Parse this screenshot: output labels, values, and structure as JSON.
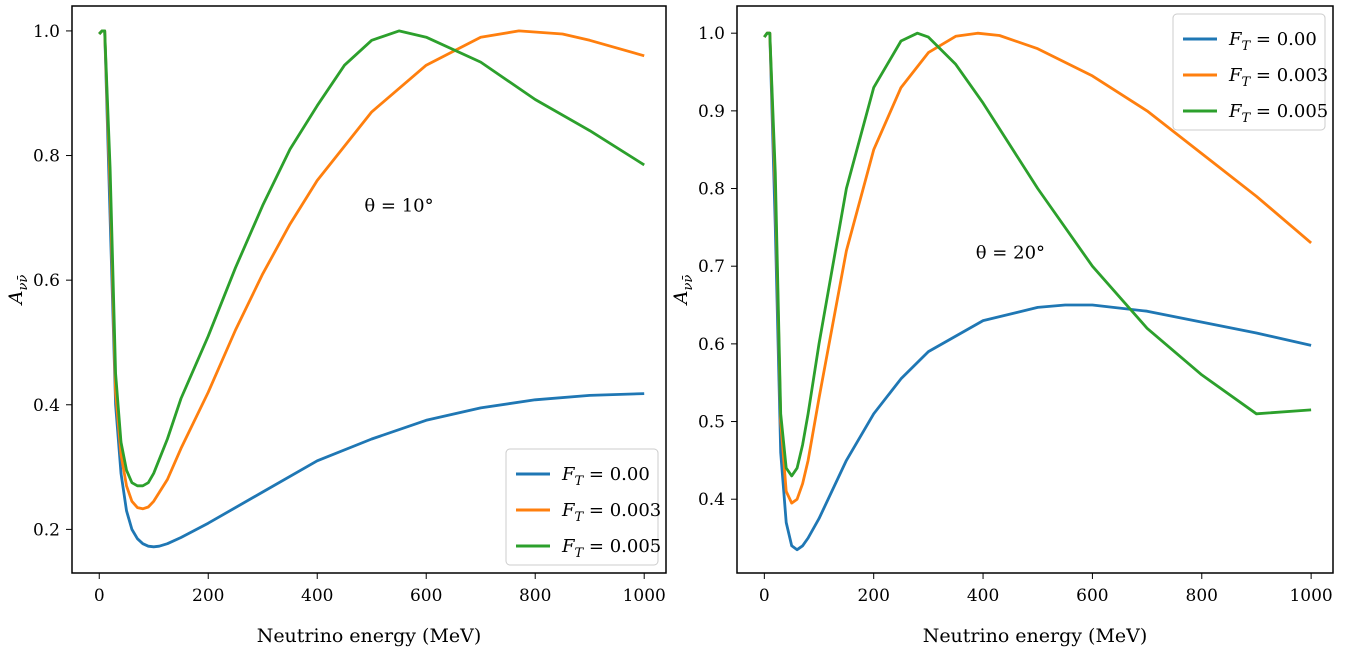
{
  "chart_data": [
    {
      "type": "line",
      "panel": "left",
      "xlabel": "Neutrino energy (MeV)",
      "ylabel": "A_{νν̄}",
      "xlim": [
        -50,
        1040
      ],
      "ylim": [
        0.13,
        1.04
      ],
      "xticks": [
        0,
        200,
        400,
        600,
        800,
        1000
      ],
      "yticks": [
        0.2,
        0.4,
        0.6,
        0.8,
        1.0
      ],
      "ytick_labels": [
        "0.2",
        "0.4",
        "0.6",
        "0.8",
        "1.0"
      ],
      "annotation": {
        "text": "θ = 10°",
        "x": 550,
        "y": 0.71
      },
      "legend": {
        "placement": "lower right"
      },
      "series": [
        {
          "name": "F_T = 0.00",
          "color": "#1f77b4",
          "x": [
            0,
            5,
            10,
            20,
            30,
            40,
            50,
            60,
            70,
            80,
            90,
            100,
            110,
            125,
            150,
            200,
            300,
            400,
            500,
            600,
            700,
            800,
            900,
            1000
          ],
          "y": [
            0.995,
            1.0,
            1.0,
            0.7,
            0.4,
            0.29,
            0.23,
            0.2,
            0.185,
            0.177,
            0.173,
            0.172,
            0.173,
            0.177,
            0.187,
            0.21,
            0.26,
            0.31,
            0.345,
            0.375,
            0.395,
            0.408,
            0.415,
            0.418
          ]
        },
        {
          "name": "F_T = 0.003",
          "color": "#ff7f0e",
          "x": [
            0,
            5,
            10,
            20,
            30,
            40,
            50,
            60,
            70,
            80,
            90,
            100,
            125,
            150,
            200,
            250,
            300,
            350,
            400,
            500,
            600,
            700,
            770,
            850,
            900,
            1000
          ],
          "y": [
            0.995,
            1.0,
            1.0,
            0.75,
            0.42,
            0.32,
            0.27,
            0.245,
            0.235,
            0.233,
            0.236,
            0.245,
            0.28,
            0.33,
            0.42,
            0.52,
            0.61,
            0.69,
            0.76,
            0.87,
            0.945,
            0.99,
            1.0,
            0.995,
            0.985,
            0.96
          ]
        },
        {
          "name": "F_T = 0.005",
          "color": "#2ca02c",
          "x": [
            0,
            5,
            10,
            20,
            30,
            40,
            50,
            60,
            70,
            80,
            90,
            100,
            125,
            150,
            200,
            250,
            300,
            350,
            400,
            450,
            500,
            550,
            600,
            700,
            800,
            900,
            1000
          ],
          "y": [
            0.995,
            1.0,
            1.0,
            0.78,
            0.45,
            0.34,
            0.295,
            0.275,
            0.27,
            0.27,
            0.275,
            0.29,
            0.345,
            0.41,
            0.51,
            0.62,
            0.72,
            0.81,
            0.88,
            0.945,
            0.985,
            1.0,
            0.99,
            0.95,
            0.89,
            0.84,
            0.785
          ]
        }
      ]
    },
    {
      "type": "line",
      "panel": "right",
      "xlabel": "Neutrino energy (MeV)",
      "ylabel": "A_{νν̄}",
      "xlim": [
        -50,
        1040
      ],
      "ylim": [
        0.305,
        1.035
      ],
      "xticks": [
        0,
        200,
        400,
        600,
        800,
        1000
      ],
      "yticks": [
        0.4,
        0.5,
        0.6,
        0.7,
        0.8,
        0.9,
        1.0
      ],
      "ytick_labels": [
        "0.4",
        "0.5",
        "0.6",
        "0.7",
        "0.8",
        "0.9",
        "1.0"
      ],
      "annotation": {
        "text": "θ = 20°",
        "x": 450,
        "y": 0.71
      },
      "legend": {
        "placement": "upper right"
      },
      "series": [
        {
          "name": "F_T = 0.00",
          "color": "#1f77b4",
          "x": [
            0,
            5,
            10,
            20,
            30,
            40,
            50,
            60,
            70,
            80,
            100,
            150,
            200,
            250,
            300,
            400,
            500,
            550,
            600,
            700,
            800,
            900,
            1000
          ],
          "y": [
            0.995,
            1.0,
            1.0,
            0.75,
            0.46,
            0.37,
            0.34,
            0.335,
            0.34,
            0.35,
            0.375,
            0.45,
            0.51,
            0.555,
            0.59,
            0.63,
            0.647,
            0.65,
            0.65,
            0.642,
            0.628,
            0.614,
            0.598
          ]
        },
        {
          "name": "F_T = 0.003",
          "color": "#ff7f0e",
          "x": [
            0,
            5,
            10,
            20,
            30,
            40,
            50,
            60,
            70,
            80,
            100,
            150,
            200,
            250,
            300,
            350,
            390,
            430,
            500,
            600,
            700,
            800,
            900,
            1000
          ],
          "y": [
            0.995,
            1.0,
            1.0,
            0.8,
            0.5,
            0.41,
            0.395,
            0.4,
            0.42,
            0.45,
            0.53,
            0.72,
            0.85,
            0.93,
            0.975,
            0.996,
            1.0,
            0.997,
            0.98,
            0.945,
            0.9,
            0.845,
            0.79,
            0.73
          ]
        },
        {
          "name": "F_T = 0.005",
          "color": "#2ca02c",
          "x": [
            0,
            5,
            10,
            20,
            30,
            40,
            50,
            60,
            70,
            80,
            100,
            150,
            200,
            250,
            280,
            300,
            350,
            400,
            500,
            600,
            700,
            800,
            900,
            1000
          ],
          "y": [
            0.995,
            1.0,
            1.0,
            0.82,
            0.51,
            0.44,
            0.43,
            0.44,
            0.47,
            0.51,
            0.6,
            0.8,
            0.93,
            0.99,
            1.0,
            0.995,
            0.96,
            0.91,
            0.8,
            0.7,
            0.62,
            0.56,
            0.51,
            0.515
          ]
        }
      ]
    }
  ]
}
